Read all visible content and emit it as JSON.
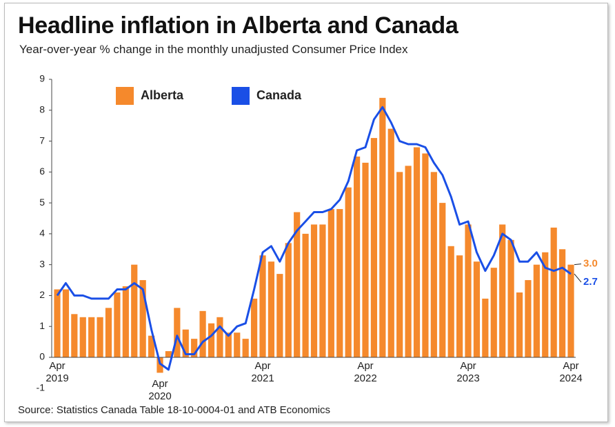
{
  "chart_data": {
    "type": "bar_line",
    "title": "Headline inflation in Alberta and Canada",
    "subtitle": "Year-over-year % change in the monthly unadjusted Consumer Price Index",
    "source": "Source: Statistics Canada Table 18-10-0004-01 and ATB Economics",
    "categories": [
      "Apr 2019",
      null,
      null,
      null,
      null,
      null,
      null,
      null,
      null,
      null,
      null,
      null,
      "Apr 2020",
      null,
      null,
      null,
      null,
      null,
      null,
      null,
      null,
      null,
      null,
      null,
      "Apr 2021",
      null,
      null,
      null,
      null,
      null,
      null,
      null,
      null,
      null,
      null,
      null,
      "Apr 2022",
      null,
      null,
      null,
      null,
      null,
      null,
      null,
      null,
      null,
      null,
      null,
      "Apr 2023",
      null,
      null,
      null,
      null,
      null,
      null,
      null,
      null,
      null,
      null,
      null,
      "Apr 2024"
    ],
    "series": [
      {
        "name": "Alberta",
        "type": "bar",
        "color": "#f5892c",
        "values": [
          2.2,
          2.2,
          1.4,
          1.3,
          1.3,
          1.3,
          1.6,
          2.1,
          2.3,
          3.0,
          2.5,
          0.7,
          -0.5,
          0.2,
          1.6,
          0.9,
          0.6,
          1.5,
          1.1,
          1.3,
          0.8,
          0.8,
          0.6,
          1.9,
          3.3,
          3.1,
          2.7,
          3.7,
          4.7,
          4.0,
          4.3,
          4.3,
          4.8,
          4.8,
          5.5,
          6.5,
          6.3,
          7.1,
          8.4,
          7.4,
          6.0,
          6.2,
          6.8,
          6.6,
          6.0,
          5.0,
          3.6,
          3.3,
          4.3,
          3.1,
          1.9,
          2.9,
          4.3,
          3.8,
          2.1,
          2.5,
          3.0,
          3.4,
          4.2,
          3.5,
          3.0
        ],
        "value_labels": [
          null,
          null,
          null,
          null,
          null,
          null,
          null,
          null,
          null,
          null,
          null,
          null,
          null,
          null,
          null,
          null,
          null,
          null,
          null,
          null,
          null,
          null,
          null,
          null,
          null,
          null,
          null,
          null,
          null,
          null,
          null,
          null,
          null,
          null,
          null,
          null,
          null,
          null,
          null,
          null,
          null,
          null,
          null,
          null,
          null,
          null,
          null,
          null,
          null,
          null,
          null,
          null,
          null,
          null,
          null,
          null,
          null,
          null,
          null,
          null,
          "3.0"
        ]
      },
      {
        "name": "Canada",
        "type": "line",
        "color": "#1a4fe6",
        "values": [
          2.0,
          2.4,
          2.0,
          2.0,
          1.9,
          1.9,
          1.9,
          2.2,
          2.2,
          2.4,
          2.2,
          0.9,
          -0.2,
          -0.4,
          0.7,
          0.1,
          0.1,
          0.5,
          0.7,
          1.0,
          0.7,
          1.0,
          1.1,
          2.2,
          3.4,
          3.6,
          3.1,
          3.7,
          4.1,
          4.4,
          4.7,
          4.7,
          4.8,
          5.1,
          5.7,
          6.7,
          6.8,
          7.7,
          8.1,
          7.6,
          7.0,
          6.9,
          6.9,
          6.8,
          6.3,
          5.9,
          5.2,
          4.3,
          4.4,
          3.4,
          2.8,
          3.3,
          4.0,
          3.8,
          3.1,
          3.1,
          3.4,
          2.9,
          2.8,
          2.9,
          2.7
        ],
        "value_labels": [
          null,
          null,
          null,
          null,
          null,
          null,
          null,
          null,
          null,
          null,
          null,
          null,
          null,
          null,
          null,
          null,
          null,
          null,
          null,
          null,
          null,
          null,
          null,
          null,
          null,
          null,
          null,
          null,
          null,
          null,
          null,
          null,
          null,
          null,
          null,
          null,
          null,
          null,
          null,
          null,
          null,
          null,
          null,
          null,
          null,
          null,
          null,
          null,
          null,
          null,
          null,
          null,
          null,
          null,
          null,
          null,
          null,
          null,
          null,
          null,
          "2.7"
        ]
      }
    ],
    "ylim": [
      -1,
      9
    ],
    "yticks": [
      -1,
      0,
      1,
      2,
      3,
      4,
      5,
      6,
      7,
      8,
      9
    ],
    "grid": false,
    "legend": "top-left"
  }
}
